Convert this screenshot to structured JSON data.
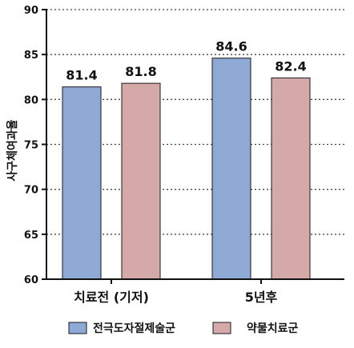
{
  "chart_data": {
    "type": "bar",
    "title": "",
    "xlabel": "",
    "ylabel": "사구체여과율",
    "categories": [
      "치료전 (기저)",
      "5년후"
    ],
    "series": [
      {
        "name": "전극도자절제술군",
        "values": [
          81.4,
          84.6
        ],
        "color": "#8eaad4"
      },
      {
        "name": "약물치료군",
        "values": [
          81.8,
          82.4
        ],
        "color": "#d6a9a9"
      }
    ],
    "value_labels": [
      [
        "81.4",
        "84.6"
      ],
      [
        "81.8",
        "82.4"
      ]
    ],
    "ylim": [
      60,
      90
    ],
    "yticks": [
      60,
      65,
      70,
      75,
      80,
      85,
      90
    ],
    "ytick_labels": [
      "60",
      "65",
      "70",
      "75",
      "80",
      "85",
      "90"
    ],
    "grid": "horizontal-dotted",
    "legend_position": "bottom"
  }
}
